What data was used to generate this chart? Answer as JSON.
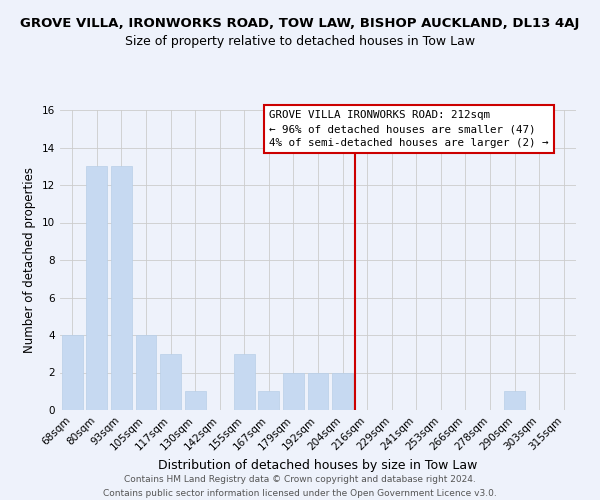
{
  "title": "GROVE VILLA, IRONWORKS ROAD, TOW LAW, BISHOP AUCKLAND, DL13 4AJ",
  "subtitle": "Size of property relative to detached houses in Tow Law",
  "xlabel": "Distribution of detached houses by size in Tow Law",
  "ylabel": "Number of detached properties",
  "bar_labels": [
    "68sqm",
    "80sqm",
    "93sqm",
    "105sqm",
    "117sqm",
    "130sqm",
    "142sqm",
    "155sqm",
    "167sqm",
    "179sqm",
    "192sqm",
    "204sqm",
    "216sqm",
    "229sqm",
    "241sqm",
    "253sqm",
    "266sqm",
    "278sqm",
    "290sqm",
    "303sqm",
    "315sqm"
  ],
  "bar_values": [
    4,
    13,
    13,
    4,
    3,
    1,
    0,
    3,
    1,
    2,
    2,
    2,
    0,
    0,
    0,
    0,
    0,
    0,
    1,
    0,
    0
  ],
  "bar_color": "#c6d9f1",
  "bar_edge_color": "#b8cfe8",
  "grid_color": "#cccccc",
  "background_color": "#eef2fb",
  "vline_index": 11.5,
  "vline_color": "#cc0000",
  "annotation_text": "GROVE VILLA IRONWORKS ROAD: 212sqm\n← 96% of detached houses are smaller (47)\n4% of semi-detached houses are larger (2) →",
  "annotation_box_color": "#ffffff",
  "annotation_box_edge": "#cc0000",
  "ylim": [
    0,
    16
  ],
  "yticks": [
    0,
    2,
    4,
    6,
    8,
    10,
    12,
    14,
    16
  ],
  "footer_line1": "Contains HM Land Registry data © Crown copyright and database right 2024.",
  "footer_line2": "Contains public sector information licensed under the Open Government Licence v3.0.",
  "title_fontsize": 9.5,
  "subtitle_fontsize": 9,
  "xlabel_fontsize": 9,
  "ylabel_fontsize": 8.5,
  "tick_fontsize": 7.5,
  "footer_fontsize": 6.5,
  "annot_fontsize": 7.8
}
